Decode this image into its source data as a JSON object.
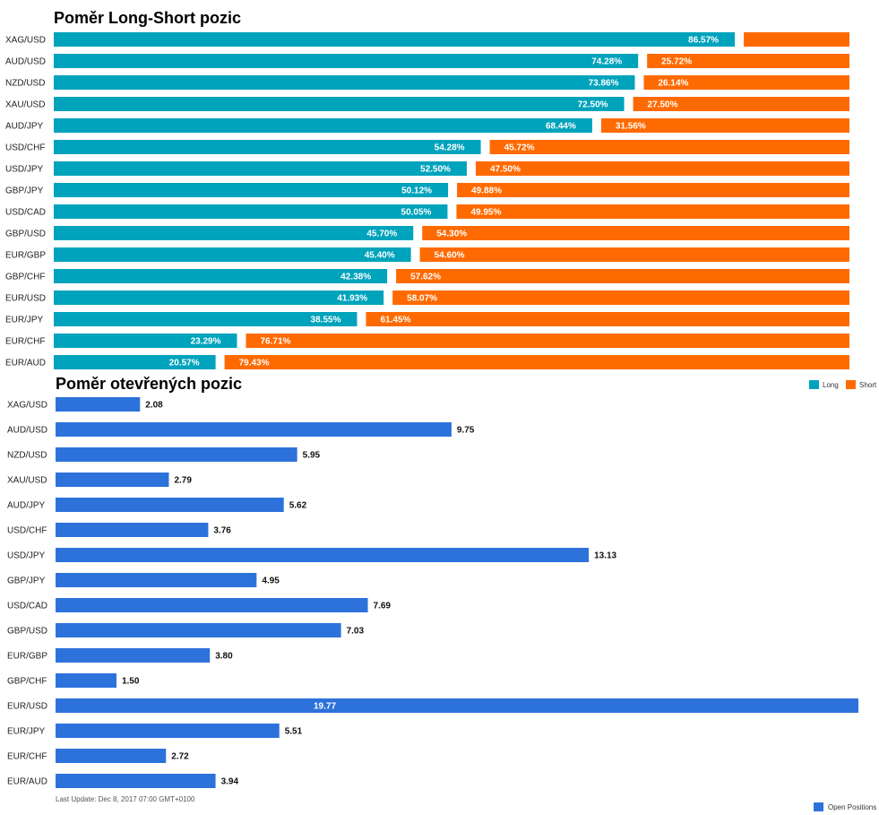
{
  "colors": {
    "long": "#00A3BC",
    "short": "#FF6A00",
    "open": "#2D72DB"
  },
  "chart_data": [
    {
      "type": "bar",
      "orientation": "horizontal",
      "stacked": true,
      "title": "Poměr Long-Short pozic",
      "categories": [
        "XAG/USD",
        "AUD/USD",
        "NZD/USD",
        "XAU/USD",
        "AUD/JPY",
        "USD/CHF",
        "USD/JPY",
        "GBP/JPY",
        "USD/CAD",
        "GBP/USD",
        "EUR/GBP",
        "GBP/CHF",
        "EUR/USD",
        "EUR/JPY",
        "EUR/CHF",
        "EUR/AUD"
      ],
      "series": [
        {
          "name": "Long",
          "values": [
            86.57,
            74.28,
            73.86,
            72.5,
            68.44,
            54.28,
            52.5,
            50.12,
            50.05,
            45.7,
            45.4,
            42.38,
            41.93,
            38.55,
            23.29,
            20.57
          ],
          "labels": [
            "86.57%",
            "74.28%",
            "73.86%",
            "72.50%",
            "68.44%",
            "54.28%",
            "52.50%",
            "50.12%",
            "50.05%",
            "45.70%",
            "45.40%",
            "42.38%",
            "41.93%",
            "38.55%",
            "23.29%",
            "20.57%"
          ]
        },
        {
          "name": "Short",
          "values": [
            13.43,
            25.72,
            26.14,
            27.5,
            31.56,
            45.72,
            47.5,
            49.88,
            49.95,
            54.3,
            54.6,
            57.62,
            58.07,
            61.45,
            76.71,
            79.43
          ],
          "labels": [
            "",
            "25.72%",
            "26.14%",
            "27.50%",
            "31.56%",
            "45.72%",
            "47.50%",
            "49.88%",
            "49.95%",
            "54.30%",
            "54.60%",
            "57.62%",
            "58.07%",
            "61.45%",
            "76.71%",
            "79.43%"
          ]
        }
      ],
      "xlim": [
        0,
        100
      ],
      "legend": "bottom-right"
    },
    {
      "type": "bar",
      "orientation": "horizontal",
      "title": "Poměr otevřených pozic",
      "categories": [
        "XAG/USD",
        "AUD/USD",
        "NZD/USD",
        "XAU/USD",
        "AUD/JPY",
        "USD/CHF",
        "USD/JPY",
        "GBP/JPY",
        "USD/CAD",
        "GBP/USD",
        "EUR/GBP",
        "GBP/CHF",
        "EUR/USD",
        "EUR/JPY",
        "EUR/CHF",
        "EUR/AUD"
      ],
      "series": [
        {
          "name": "Open Positions",
          "values": [
            2.08,
            9.75,
            5.95,
            2.79,
            5.62,
            3.76,
            13.13,
            4.95,
            7.69,
            7.03,
            3.8,
            1.5,
            19.77,
            5.51,
            2.72,
            3.94
          ],
          "labels": [
            "2.08",
            "9.75",
            "5.95",
            "2.79",
            "5.62",
            "3.76",
            "13.13",
            "4.95",
            "7.69",
            "7.03",
            "3.80",
            "1.50",
            "19.77",
            "5.51",
            "2.72",
            "3.94"
          ]
        }
      ],
      "xlim": [
        0,
        19.77
      ],
      "legend": "bottom-right"
    }
  ],
  "footer": {
    "last_update": "Last Update: Dec 8, 2017 07:00 GMT+0100"
  }
}
